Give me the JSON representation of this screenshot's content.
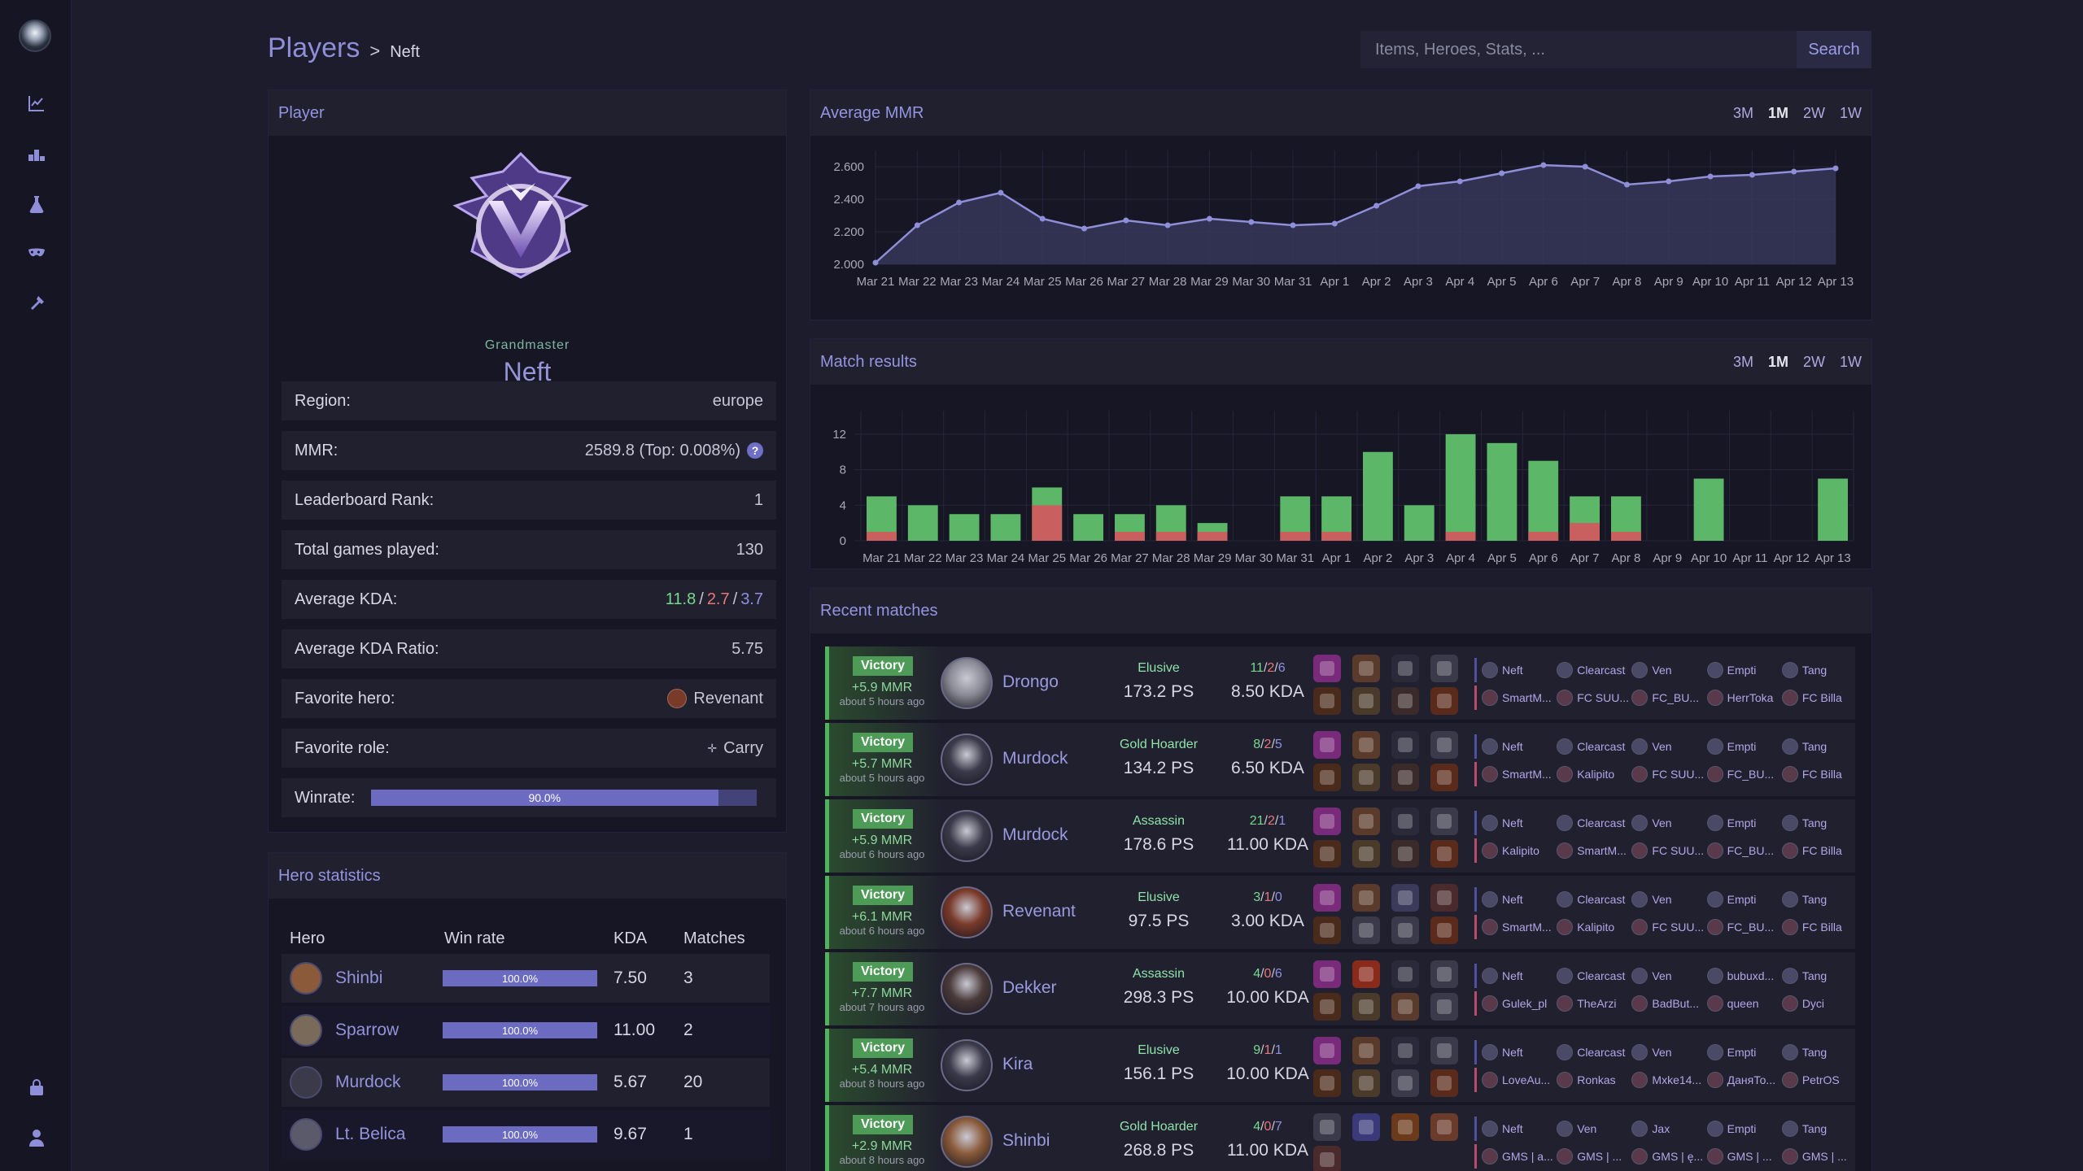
{
  "breadcrumb": {
    "section": "Players",
    "separator": ">",
    "current": "Neft"
  },
  "search": {
    "placeholder": "Items, Heroes, Stats, ...",
    "button": "Search"
  },
  "player": {
    "panel_title": "Player",
    "rank": "Grandmaster",
    "name": "Neft",
    "rows": [
      {
        "label": "Region:",
        "value": "europe"
      },
      {
        "label": "MMR:",
        "value": "2589.8 (Top: 0.008%)"
      },
      {
        "label": "Leaderboard Rank:",
        "value": "1"
      },
      {
        "label": "Total games played:",
        "value": "130"
      },
      {
        "label": "Average KDA:",
        "kills": "11.8",
        "deaths": "2.7",
        "assists": "3.7",
        "sep": "/"
      },
      {
        "label": "Average KDA Ratio:",
        "value": "5.75"
      },
      {
        "label": "Favorite hero:",
        "value": "Revenant"
      },
      {
        "label": "Favorite role:",
        "value": "Carry"
      },
      {
        "label": "Winrate:",
        "value": "90.0%",
        "fraction": 0.9
      }
    ]
  },
  "hero_stats": {
    "panel_title": "Hero statistics",
    "columns": [
      "Hero",
      "Win rate",
      "KDA",
      "Matches"
    ],
    "rows": [
      {
        "hero": "Shinbi",
        "winrate": "100.0%",
        "kda": "7.50",
        "matches": "3",
        "color": "#8a5a3a"
      },
      {
        "hero": "Sparrow",
        "winrate": "100.0%",
        "kda": "11.00",
        "matches": "2",
        "color": "#7a6a5a"
      },
      {
        "hero": "Murdock",
        "winrate": "100.0%",
        "kda": "5.67",
        "matches": "20",
        "color": "#3a3a4a"
      },
      {
        "hero": "Lt. Belica",
        "winrate": "100.0%",
        "kda": "9.67",
        "matches": "1",
        "color": "#5a5a6a"
      }
    ]
  },
  "mmr_chart": {
    "panel_title": "Average MMR",
    "ranges": [
      "3M",
      "1M",
      "2W",
      "1W"
    ],
    "active_range": "1M",
    "chart_data": {
      "type": "area",
      "title": "Average MMR",
      "x": [
        "Mar 21",
        "Mar 22",
        "Mar 23",
        "Mar 24",
        "Mar 25",
        "Mar 26",
        "Mar 27",
        "Mar 28",
        "Mar 29",
        "Mar 30",
        "Mar 31",
        "Apr 1",
        "Apr 2",
        "Apr 3",
        "Apr 4",
        "Apr 5",
        "Apr 6",
        "Apr 7",
        "Apr 8",
        "Apr 9",
        "Apr 10",
        "Apr 11",
        "Apr 12",
        "Apr 13"
      ],
      "values": [
        2010,
        2240,
        2380,
        2440,
        2280,
        2220,
        2270,
        2240,
        2280,
        2260,
        2240,
        2250,
        2360,
        2480,
        2510,
        2560,
        2610,
        2600,
        2490,
        2510,
        2540,
        2550,
        2570,
        2590
      ],
      "yticks": [
        "2.000",
        "2.200",
        "2.400",
        "2.600"
      ],
      "ylim": [
        2000,
        2700
      ],
      "grid": true
    }
  },
  "results_chart": {
    "panel_title": "Match results",
    "ranges": [
      "3M",
      "1M",
      "2W",
      "1W"
    ],
    "active_range": "1M",
    "chart_data": {
      "type": "bar",
      "title": "Match results",
      "categories": [
        "Mar 21",
        "Mar 22",
        "Mar 23",
        "Mar 24",
        "Mar 25",
        "Mar 26",
        "Mar 27",
        "Mar 28",
        "Mar 29",
        "Mar 30",
        "Mar 31",
        "Apr 1",
        "Apr 2",
        "Apr 3",
        "Apr 4",
        "Apr 5",
        "Apr 6",
        "Apr 7",
        "Apr 8",
        "Apr 9",
        "Apr 10",
        "Apr 11",
        "Apr 12",
        "Apr 13"
      ],
      "series": [
        {
          "values": [
            5,
            4,
            3,
            3,
            6,
            3,
            3,
            4,
            2,
            0,
            5,
            5,
            10,
            4,
            12,
            11,
            9,
            5,
            5,
            0,
            7,
            0,
            0,
            7
          ],
          "color": "#5cb868"
        },
        {
          "values": [
            1,
            0,
            0,
            0,
            4,
            0,
            1,
            1,
            1,
            0,
            1,
            1,
            0,
            0,
            1,
            0,
            1,
            2,
            1,
            0,
            0,
            0,
            0,
            0
          ],
          "color": "#c95f5f"
        }
      ],
      "stacked": true,
      "yticks": [
        "0",
        "4",
        "8",
        "12"
      ],
      "ylim": [
        0,
        13
      ],
      "grid": true
    }
  },
  "recent": {
    "panel_title": "Recent matches",
    "matches": [
      {
        "result": "Victory",
        "mmr": "+5.9 MMR",
        "ago": "about 5 hours ago",
        "hero": "Drongo",
        "role": "Elusive",
        "ps": "173.2 PS",
        "k": "11",
        "d": "2",
        "a": "6",
        "kda": "8.50 KDA",
        "hero_color": "#8a8a96",
        "items": [
          "#7a2a7a",
          "#5a3a2a",
          "#2a2a3a",
          "#3a3a4a",
          "#4a2a1a",
          "#4a3a2a",
          "#3a2a2a",
          "#5a2a1a"
        ],
        "team_a": [
          "Neft",
          "Clearcast",
          "Ven",
          "Empti",
          "Tang"
        ],
        "team_b": [
          "SmartM...",
          "FC SUU...",
          "FC_BU...",
          "HerrToka",
          "FC Billa"
        ]
      },
      {
        "result": "Victory",
        "mmr": "+5.7 MMR",
        "ago": "about 5 hours ago",
        "hero": "Murdock",
        "role": "Gold Hoarder",
        "ps": "134.2 PS",
        "k": "8",
        "d": "2",
        "a": "5",
        "kda": "6.50 KDA",
        "hero_color": "#3a3a4a",
        "items": [
          "#7a2a7a",
          "#5a3a2a",
          "#2a2a3a",
          "#3a3a4a",
          "#4a2a1a",
          "#4a3a2a",
          "#3a2a2a",
          "#5a2a1a"
        ],
        "team_a": [
          "Neft",
          "Clearcast",
          "Ven",
          "Empti",
          "Tang"
        ],
        "team_b": [
          "SmartM...",
          "Kalipito",
          "FC SUU...",
          "FC_BU...",
          "FC Billa"
        ]
      },
      {
        "result": "Victory",
        "mmr": "+5.9 MMR",
        "ago": "about 6 hours ago",
        "hero": "Murdock",
        "role": "Assassin",
        "ps": "178.6 PS",
        "k": "21",
        "d": "2",
        "a": "1",
        "kda": "11.00 KDA",
        "hero_color": "#3a3a4a",
        "items": [
          "#7a2a7a",
          "#5a3a2a",
          "#2a2a3a",
          "#3a3a4a",
          "#4a2a1a",
          "#4a3a2a",
          "#3a2a2a",
          "#5a2a1a"
        ],
        "team_a": [
          "Neft",
          "Clearcast",
          "Ven",
          "Empti",
          "Tang"
        ],
        "team_b": [
          "Kalipito",
          "SmartM...",
          "FC SUU...",
          "FC_BU...",
          "FC Billa"
        ]
      },
      {
        "result": "Victory",
        "mmr": "+6.1 MMR",
        "ago": "about 6 hours ago",
        "hero": "Revenant",
        "role": "Elusive",
        "ps": "97.5 PS",
        "k": "3",
        "d": "1",
        "a": "0",
        "kda": "3.00 KDA",
        "hero_color": "#7a3a2a",
        "items": [
          "#7a2a7a",
          "#5a3a2a",
          "#3a3a5a",
          "#4a2a2a",
          "#4a2a1a",
          "#3a3a4a",
          "#3a3a4a",
          "#5a2a1a"
        ],
        "team_a": [
          "Neft",
          "Clearcast",
          "Ven",
          "Empti",
          "Tang"
        ],
        "team_b": [
          "SmartM...",
          "Kalipito",
          "FC SUU...",
          "FC_BU...",
          "FC Billa"
        ]
      },
      {
        "result": "Victory",
        "mmr": "+7.7 MMR",
        "ago": "about 7 hours ago",
        "hero": "Dekker",
        "role": "Assassin",
        "ps": "298.3 PS",
        "k": "4",
        "d": "0",
        "a": "6",
        "kda": "10.00 KDA",
        "hero_color": "#4a3a3a",
        "items": [
          "#7a2a7a",
          "#8a2a1a",
          "#2a2a3a",
          "#3a3a4a",
          "#4a2a1a",
          "#4a3a2a",
          "#5a3a2a",
          "#3a3a4a"
        ],
        "team_a": [
          "Neft",
          "Clearcast",
          "Ven",
          "bubuxd...",
          "Tang"
        ],
        "team_b": [
          "Gulek_pl",
          "TheArzi",
          "BadBut...",
          "queen",
          "Dyci"
        ]
      },
      {
        "result": "Victory",
        "mmr": "+5.4 MMR",
        "ago": "about 8 hours ago",
        "hero": "Kira",
        "role": "Elusive",
        "ps": "156.1 PS",
        "k": "9",
        "d": "1",
        "a": "1",
        "kda": "10.00 KDA",
        "hero_color": "#3a3a4a",
        "items": [
          "#7a2a7a",
          "#5a3a2a",
          "#2a2a3a",
          "#3a3a4a",
          "#4a2a1a",
          "#4a3a2a",
          "#3a3a4a",
          "#5a2a1a"
        ],
        "team_a": [
          "Neft",
          "Clearcast",
          "Ven",
          "Empti",
          "Tang"
        ],
        "team_b": [
          "LoveAu...",
          "Ronkas",
          "Mxke14...",
          "ДаняТо...",
          "PetrOS"
        ]
      },
      {
        "result": "Victory",
        "mmr": "+2.9 MMR",
        "ago": "about 8 hours ago",
        "hero": "Shinbi",
        "role": "Gold Hoarder",
        "ps": "268.8 PS",
        "k": "4",
        "d": "0",
        "a": "7",
        "kda": "11.00 KDA",
        "hero_color": "#8a5a3a",
        "items": [
          "#3a3a4a",
          "#3a3a7a",
          "#6a3a1a",
          "#6a3a2a",
          "#4a2a2a"
        ],
        "team_a": [
          "Neft",
          "Ven",
          "Jax",
          "Empti",
          "Tang"
        ],
        "team_b": [
          "GMS | a...",
          "GMS | ...",
          "GMS | ę...",
          "GMS | ...",
          "GMS | ..."
        ]
      }
    ]
  },
  "colors": {
    "accent": "#8f8ed8",
    "win": "#5cb868",
    "loss": "#c95f5f",
    "panel": "#161624",
    "row": "#20202f"
  }
}
